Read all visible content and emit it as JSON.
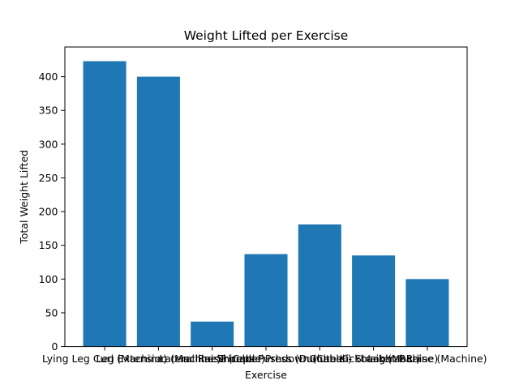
{
  "chart_data": {
    "type": "bar",
    "title": "Weight Lifted per Exercise",
    "xlabel": "Exercise",
    "ylabel": "Total Weight Lifted",
    "categories": [
      "Lying Leg Curl (Machine)",
      "Leg Extension (Machine)",
      "Lateral Raise (Cable)",
      "Incline Shoulder Press (Dumbbell)",
      "Triceps Pushdown (Cable - Straight Bar)",
      "Glute Kickback (Machine)",
      "Lateral Raise (Machine)"
    ],
    "values": [
      423,
      400,
      37,
      137,
      181,
      135,
      100
    ],
    "ylim": [
      0,
      444
    ],
    "yticks": [
      0,
      50,
      100,
      150,
      200,
      250,
      300,
      350,
      400
    ],
    "bar_color": "#1f77b4",
    "grid": false,
    "legend": "none"
  }
}
